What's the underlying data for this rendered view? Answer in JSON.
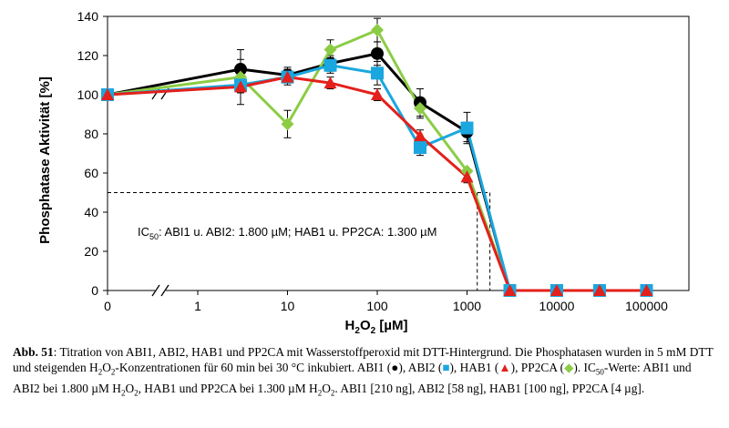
{
  "chart_data": {
    "type": "line",
    "title": "",
    "xlabel": "H2O2 [µM]",
    "xlabel_parts": {
      "main": "H",
      "sub1": "2",
      "mid": "O",
      "sub2": "2",
      "unit": " [µM]"
    },
    "ylabel": "Phosphatase Aktivität [%]",
    "ylim": [
      0,
      140
    ],
    "yticks": [
      0,
      20,
      40,
      60,
      80,
      100,
      120,
      140
    ],
    "xscale": "log with axis break",
    "xtick_labels": [
      "0",
      "1",
      "10",
      "100",
      "1000",
      "10000",
      "100000"
    ],
    "grid": false,
    "ic50_text": {
      "prefix": "IC",
      "sub": "50",
      "rest": ": ABI1 u. ABI2: 1.800 µM; HAB1 u. PP2CA: 1.300 µM"
    },
    "ic50_values": [
      1800,
      1300
    ],
    "ic50_level": 50,
    "x": [
      0,
      3,
      10,
      30,
      100,
      300,
      1000,
      3000,
      10000,
      30000,
      100000
    ],
    "series": [
      {
        "name": "ABI1",
        "color": "#000000",
        "marker": "circle",
        "values": [
          100,
          113,
          110,
          116,
          121,
          96,
          81,
          0,
          0,
          0,
          0
        ],
        "errors": [
          0,
          5,
          4,
          4,
          6,
          7,
          5,
          3,
          0,
          0,
          0
        ]
      },
      {
        "name": "ABI2",
        "color": "#1aa7df",
        "marker": "square",
        "values": [
          100,
          105,
          109,
          115,
          111,
          73,
          83,
          0,
          0,
          0,
          0
        ],
        "errors": [
          0,
          4,
          4,
          4,
          6,
          4,
          8,
          0,
          0,
          0,
          0
        ]
      },
      {
        "name": "HAB1",
        "color": "#e3201b",
        "marker": "triangle",
        "values": [
          100,
          104,
          109,
          106,
          100,
          79,
          58,
          0,
          0,
          0,
          0
        ],
        "errors": [
          0,
          3,
          3,
          3,
          3,
          3,
          3,
          0,
          0,
          0,
          0
        ]
      },
      {
        "name": "PP2CA",
        "color": "#8ccc45",
        "marker": "diamond",
        "values": [
          100,
          109,
          85,
          123,
          133,
          93,
          61,
          0,
          0,
          0,
          0
        ],
        "errors": [
          0,
          14,
          7,
          5,
          6,
          5,
          0,
          0,
          0,
          0,
          0
        ]
      }
    ]
  },
  "caption": {
    "label": "Abb. 51",
    "segments": [
      {
        "t": ": Titration von ABI1, ABI2, HAB1 und PP2CA mit Wasserstoffperoxid mit DTT-Hintergrund. Die Phosphatasen wurden in 5 mM DTT und steigenden H"
      },
      {
        "t": "2",
        "sub": true
      },
      {
        "t": "O"
      },
      {
        "t": "2",
        "sub": true
      },
      {
        "t": "-Konzentrationen für 60 min bei 30 °C inkubiert. ABI1 ("
      },
      {
        "t": "●",
        "cls": "sym-black"
      },
      {
        "t": "), ABI2 ("
      },
      {
        "t": "■",
        "cls": "sym-blue"
      },
      {
        "t": "), HAB1 ("
      },
      {
        "t": "▲",
        "cls": "sym-red"
      },
      {
        "t": "), PP2CA ("
      },
      {
        "t": "◆",
        "cls": "sym-green"
      },
      {
        "t": "). IC"
      },
      {
        "t": "50",
        "sub": true
      },
      {
        "t": "-Werte: ABI1 und ABI2 bei 1.800 µM H"
      },
      {
        "t": "2",
        "sub": true
      },
      {
        "t": "O"
      },
      {
        "t": "2",
        "sub": true
      },
      {
        "t": ", HAB1 und PP2CA bei 1.300 µM H"
      },
      {
        "t": "2",
        "sub": true
      },
      {
        "t": "O"
      },
      {
        "t": "2",
        "sub": true
      },
      {
        "t": ". ABI1 [210 ng], ABI2 [58 ng], HAB1 [100 ng], PP2CA [4 µg]."
      }
    ]
  }
}
